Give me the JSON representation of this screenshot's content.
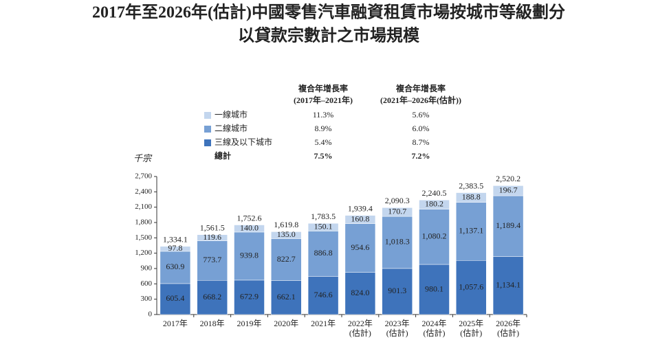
{
  "chart_data": {
    "type": "stacked_bar",
    "title": "2017年至2026年(估計)中國零售汽車融資租賃市場按城市等級劃分",
    "subtitle": "以貸款宗數計之市場規模",
    "y_label": "千宗",
    "categories": [
      "2017年",
      "2018年",
      "2019年",
      "2020年",
      "2021年",
      "2022年\n(估計)",
      "2023年\n(估計)",
      "2024年\n(估計)",
      "2025年\n(估計)",
      "2026年\n(估計)"
    ],
    "series": [
      {
        "name": "一線城市",
        "color": "#c3d6ee",
        "values": [
          97.8,
          119.6,
          140.0,
          135.0,
          150.1,
          160.8,
          170.7,
          180.2,
          188.8,
          196.7
        ],
        "value_labels": [
          "97.8",
          "119.6",
          "140.0",
          "135.0",
          "150.1",
          "160.8",
          "170.7",
          "180.2",
          "188.8",
          "196.7"
        ]
      },
      {
        "name": "二線城市",
        "color": "#77a0d4",
        "values": [
          630.9,
          773.7,
          939.8,
          822.7,
          886.8,
          954.6,
          1018.3,
          1080.2,
          1137.1,
          1189.4
        ],
        "value_labels": [
          "630.9",
          "773.7",
          "939.8",
          "822.7",
          "886.8",
          "954.6",
          "1,018.3",
          "1,080.2",
          "1,137.1",
          "1,189.4"
        ]
      },
      {
        "name": "三線及以下城市",
        "color": "#3e73bb",
        "values": [
          605.4,
          668.2,
          672.9,
          662.1,
          746.6,
          824.0,
          901.3,
          980.1,
          1057.6,
          1134.1
        ],
        "value_labels": [
          "605.4",
          "668.2",
          "672.9",
          "662.1",
          "746.6",
          "824.0",
          "901.3",
          "980.1",
          "1,057.6",
          "1,134.1"
        ]
      }
    ],
    "totals": [
      1334.1,
      1561.5,
      1752.6,
      1619.8,
      1783.5,
      1939.4,
      2090.3,
      2240.5,
      2383.5,
      2520.2
    ],
    "total_labels": [
      "1,334.1",
      "1,561.5",
      "1,752.6",
      "1,619.8",
      "1,783.5",
      "1,939.4",
      "2,090.3",
      "2,240.5",
      "2,383.5",
      "2,520.2"
    ],
    "cagr_headers": [
      [
        "複合年增長率",
        "(2017年–2021年)"
      ],
      [
        "複合年增長率",
        "(2021年–2026年(估計))"
      ]
    ],
    "cagr": [
      [
        "11.3%",
        "5.6%"
      ],
      [
        "8.9%",
        "6.0%"
      ],
      [
        "5.4%",
        "8.7%"
      ]
    ],
    "total_name": "總計",
    "total_cagr": [
      "7.5%",
      "7.2%"
    ],
    "ylim": [
      0,
      2700
    ],
    "yticks": [
      0,
      300,
      600,
      900,
      {
        "value": 1200,
        "label": "1,200"
      },
      {
        "value": 1500,
        "label": "1,500"
      },
      {
        "value": 1800,
        "label": "1,800"
      },
      {
        "value": 2100,
        "label": "2,100"
      },
      {
        "value": 2400,
        "label": "2,400"
      },
      {
        "value": 2700,
        "label": "2,700"
      }
    ]
  }
}
